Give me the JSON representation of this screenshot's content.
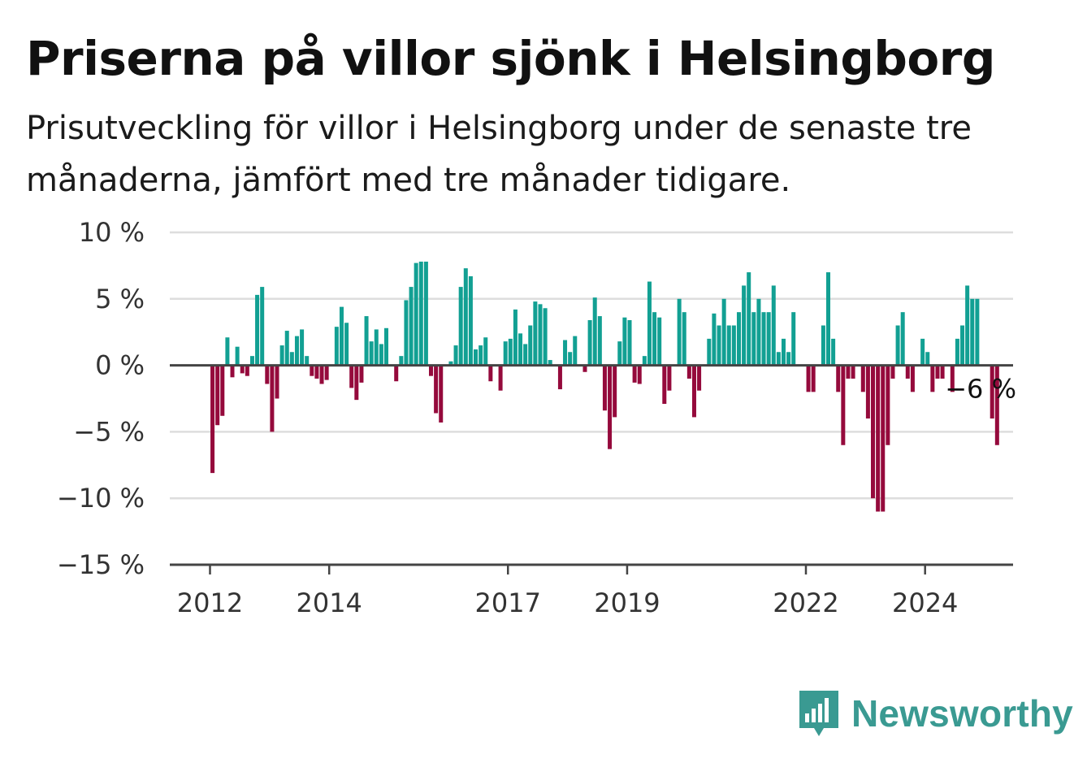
{
  "title": "Priserna på villor sjönk i Helsingborg",
  "subtitle": "Prisutveckling för villor i Helsingborg under de senaste tre månaderna, jämfört med tre månader tidigare.",
  "brand": {
    "name": "Newsworthy",
    "icon": "newsworthy-logo-icon",
    "color": "#3a9a92"
  },
  "colors": {
    "positive": "#12a093",
    "negative": "#950a3c",
    "grid": "#dddddd",
    "axis": "#444444"
  },
  "chart_data": {
    "type": "bar",
    "x_start": "2012-01",
    "x_step": "month",
    "x_ticks": [
      "2012",
      "2014",
      "2017",
      "2019",
      "2022",
      "2024"
    ],
    "y_ticks": [
      "10 %",
      "5 %",
      "0 %",
      "−5 %",
      "−10 %",
      "−15 %"
    ],
    "ylim": [
      -15,
      10
    ],
    "grid": true,
    "annotation": {
      "text": "−6 %",
      "index": 155
    },
    "values": [
      -8.1,
      -4.5,
      -3.8,
      2.1,
      -0.9,
      1.4,
      -0.6,
      -0.8,
      0.7,
      5.3,
      5.9,
      -1.4,
      -5.0,
      -2.5,
      1.5,
      2.6,
      1.0,
      2.2,
      2.7,
      0.7,
      -0.8,
      -1.0,
      -1.4,
      -1.1,
      0,
      2.9,
      4.4,
      3.2,
      -1.7,
      -2.6,
      -1.3,
      3.7,
      1.8,
      2.7,
      1.6,
      2.8,
      0,
      -1.2,
      0.7,
      4.9,
      5.9,
      7.7,
      7.8,
      7.8,
      -0.8,
      -3.6,
      -4.3,
      0,
      0.3,
      1.5,
      5.9,
      7.3,
      6.7,
      1.2,
      1.5,
      2.1,
      -1.2,
      0,
      -1.9,
      1.8,
      2.0,
      4.2,
      2.4,
      1.6,
      3.0,
      4.8,
      4.6,
      4.3,
      0.4,
      0,
      -1.8,
      1.9,
      1.0,
      2.2,
      0,
      -0.5,
      3.4,
      5.1,
      3.7,
      -3.4,
      -6.3,
      -3.9,
      1.8,
      3.6,
      3.4,
      -1.3,
      -1.4,
      0.7,
      6.3,
      4.0,
      3.6,
      -2.9,
      -1.9,
      0,
      5.0,
      4.0,
      -1.0,
      -3.9,
      -1.9,
      0,
      2.0,
      3.9,
      3.0,
      5.0,
      3.0,
      3.0,
      4.0,
      6.0,
      7.0,
      4.0,
      5.0,
      4.0,
      4.0,
      6.0,
      1.0,
      2.0,
      1.0,
      4.0,
      0,
      0,
      -2.0,
      -2.0,
      0,
      3.0,
      7.0,
      2.0,
      -2.0,
      -6.0,
      -1.0,
      -1.0,
      0,
      -2.0,
      -4.0,
      -10.0,
      -11.0,
      -11.0,
      -6.0,
      -1.0,
      3.0,
      4.0,
      -1.0,
      -2.0,
      0,
      2.0,
      1.0,
      -2.0,
      -1.0,
      -1.0,
      0,
      -2.0,
      2.0,
      3.0,
      6.0,
      5.0,
      5.0,
      0,
      0,
      -4.0,
      -6.0
    ]
  }
}
